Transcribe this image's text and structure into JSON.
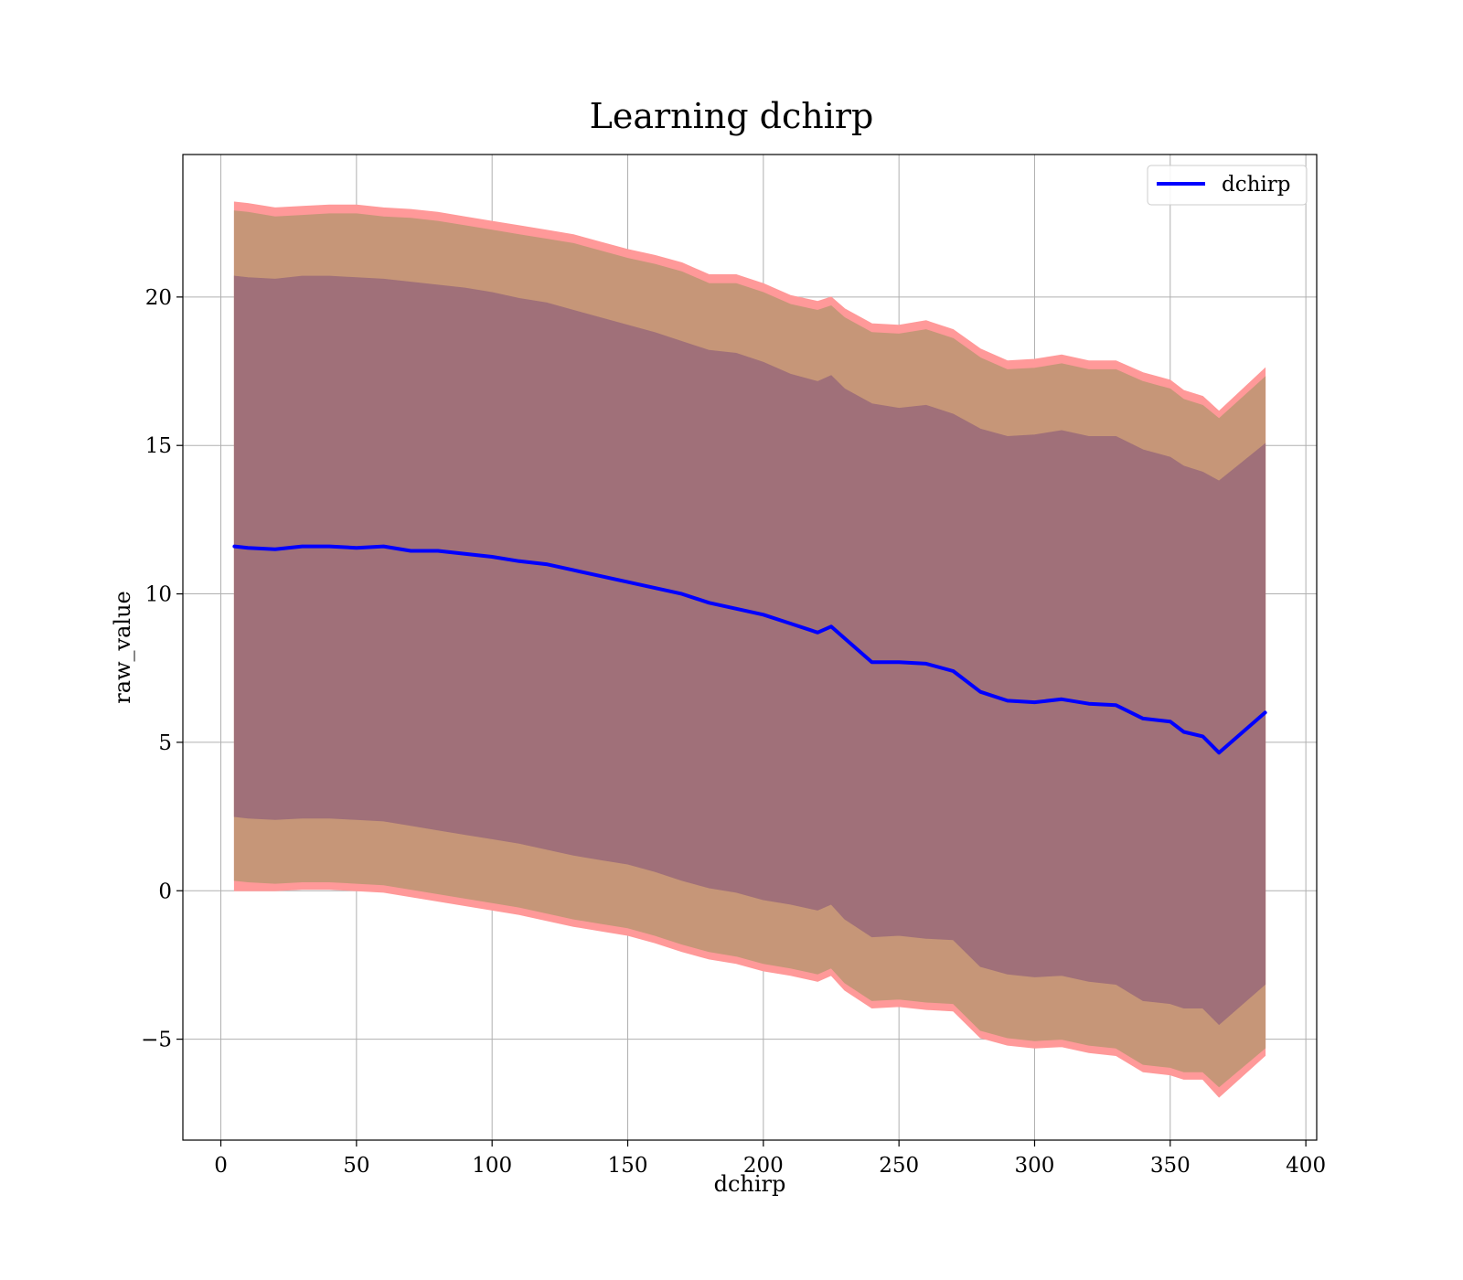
{
  "chart_data": {
    "type": "line",
    "title": "Learning dchirp",
    "xlabel": "dchirp",
    "ylabel": "raw_value",
    "xlim": [
      -14,
      404
    ],
    "ylim": [
      -8.4,
      24.8
    ],
    "grid": true,
    "legend_position": "top-right",
    "x_ticks": [
      0,
      50,
      100,
      150,
      200,
      250,
      300,
      350,
      400
    ],
    "y_ticks": [
      -5,
      0,
      5,
      10,
      15,
      20
    ],
    "x_tick_labels": [
      "0",
      "50",
      "100",
      "150",
      "200",
      "250",
      "300",
      "350",
      "400"
    ],
    "y_tick_labels": [
      "−5",
      "0",
      "5",
      "10",
      "15",
      "20"
    ],
    "colors": {
      "line": "#0000ff",
      "band_outer": "#ff9999",
      "band_middle": "#c69678",
      "band_inner": "#a07079",
      "grid": "#b0b0b0"
    },
    "series": [
      {
        "name": "dchirp",
        "x": [
          5,
          10,
          20,
          30,
          40,
          50,
          60,
          70,
          80,
          90,
          100,
          110,
          120,
          130,
          140,
          150,
          160,
          170,
          180,
          190,
          200,
          210,
          220,
          225,
          230,
          240,
          250,
          260,
          270,
          280,
          290,
          300,
          310,
          320,
          330,
          340,
          350,
          355,
          362,
          368,
          385
        ],
        "values": [
          11.6,
          11.55,
          11.5,
          11.6,
          11.6,
          11.55,
          11.6,
          11.45,
          11.45,
          11.35,
          11.25,
          11.1,
          11.0,
          10.8,
          10.6,
          10.4,
          10.2,
          10.0,
          9.7,
          9.5,
          9.3,
          9.0,
          8.7,
          8.9,
          8.5,
          7.7,
          7.7,
          7.65,
          7.4,
          6.7,
          6.4,
          6.35,
          6.45,
          6.3,
          6.25,
          5.8,
          5.7,
          5.35,
          5.2,
          4.65,
          6.0
        ],
        "bands": [
          {
            "name": "outer",
            "lower": [
              0.0,
              0.0,
              0.0,
              0.05,
              0.05,
              0.0,
              -0.05,
              -0.2,
              -0.35,
              -0.5,
              -0.65,
              -0.8,
              -1.0,
              -1.2,
              -1.35,
              -1.5,
              -1.75,
              -2.05,
              -2.3,
              -2.45,
              -2.7,
              -2.85,
              -3.05,
              -2.85,
              -3.35,
              -3.95,
              -3.9,
              -4.0,
              -4.05,
              -4.95,
              -5.2,
              -5.3,
              -5.25,
              -5.45,
              -5.55,
              -6.1,
              -6.2,
              -6.35,
              -6.35,
              -6.95,
              -5.55
            ],
            "upper": [
              23.2,
              23.15,
              23.0,
              23.05,
              23.1,
              23.1,
              23.0,
              22.95,
              22.85,
              22.7,
              22.55,
              22.4,
              22.25,
              22.1,
              21.85,
              21.6,
              21.4,
              21.15,
              20.75,
              20.75,
              20.45,
              20.05,
              19.85,
              20.0,
              19.6,
              19.1,
              19.05,
              19.2,
              18.9,
              18.25,
              17.85,
              17.9,
              18.05,
              17.85,
              17.85,
              17.45,
              17.2,
              16.85,
              16.65,
              16.15,
              17.6
            ]
          },
          {
            "name": "middle",
            "lower": [
              0.35,
              0.3,
              0.25,
              0.3,
              0.3,
              0.25,
              0.2,
              0.05,
              -0.1,
              -0.25,
              -0.4,
              -0.55,
              -0.75,
              -0.95,
              -1.1,
              -1.25,
              -1.5,
              -1.8,
              -2.05,
              -2.2,
              -2.45,
              -2.6,
              -2.8,
              -2.6,
              -3.1,
              -3.7,
              -3.65,
              -3.75,
              -3.8,
              -4.7,
              -4.95,
              -5.05,
              -5.0,
              -5.2,
              -5.3,
              -5.85,
              -5.95,
              -6.1,
              -6.1,
              -6.6,
              -5.3
            ],
            "upper": [
              22.9,
              22.85,
              22.7,
              22.75,
              22.8,
              22.8,
              22.7,
              22.65,
              22.55,
              22.4,
              22.25,
              22.1,
              21.95,
              21.8,
              21.55,
              21.3,
              21.1,
              20.85,
              20.45,
              20.45,
              20.15,
              19.75,
              19.55,
              19.7,
              19.3,
              18.8,
              18.75,
              18.9,
              18.6,
              17.95,
              17.55,
              17.6,
              17.75,
              17.55,
              17.55,
              17.15,
              16.9,
              16.55,
              16.35,
              15.9,
              17.3
            ]
          },
          {
            "name": "inner",
            "lower": [
              2.5,
              2.45,
              2.4,
              2.45,
              2.45,
              2.4,
              2.35,
              2.2,
              2.05,
              1.9,
              1.75,
              1.6,
              1.4,
              1.2,
              1.05,
              0.9,
              0.65,
              0.35,
              0.1,
              -0.05,
              -0.3,
              -0.45,
              -0.65,
              -0.45,
              -0.95,
              -1.55,
              -1.5,
              -1.6,
              -1.65,
              -2.55,
              -2.8,
              -2.9,
              -2.85,
              -3.05,
              -3.15,
              -3.7,
              -3.8,
              -3.95,
              -3.95,
              -4.5,
              -3.15
            ],
            "upper": [
              20.7,
              20.65,
              20.6,
              20.7,
              20.7,
              20.65,
              20.6,
              20.5,
              20.4,
              20.3,
              20.15,
              19.95,
              19.8,
              19.55,
              19.3,
              19.05,
              18.8,
              18.5,
              18.2,
              18.1,
              17.8,
              17.4,
              17.15,
              17.35,
              16.9,
              16.4,
              16.25,
              16.35,
              16.05,
              15.55,
              15.3,
              15.35,
              15.5,
              15.3,
              15.3,
              14.85,
              14.6,
              14.3,
              14.1,
              13.8,
              15.05
            ]
          }
        ]
      }
    ]
  }
}
